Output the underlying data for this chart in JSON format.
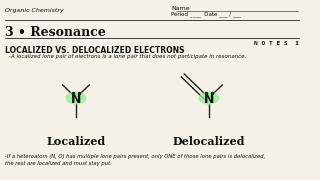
{
  "bg_color": "#f5f0e8",
  "title_main": "3 • Resonance",
  "header_left": "Organic Chemistry",
  "header_right_name": "Name",
  "header_right_period": "Period ____  Date ___ / ___",
  "notes_label": "N O T E S  I",
  "section_title": "LOCALIZED VS. DELOCALIZED ELECTRONS",
  "subtitle": "-A localized lone pair of electrons is a lone pair that does not participate in resonance.",
  "label_left": "Localized",
  "label_right": "Delocalized",
  "footer_text": "-If a heteroatom (N, O) has multiple lone pairs present, only ONE of those lone pairs is delocalized,\nthe rest are localized and must stay put.",
  "highlight_color": "#90ee90",
  "line_color": "#222222",
  "text_color": "#111111"
}
